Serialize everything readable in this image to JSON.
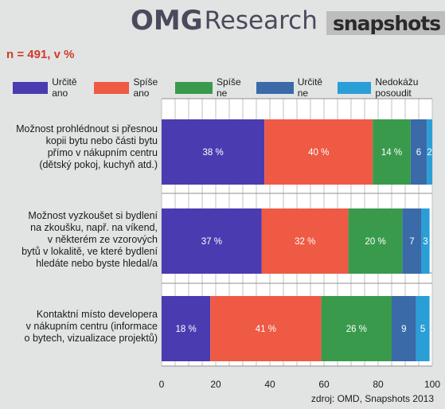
{
  "header": {
    "brand_omg": "OMG",
    "brand_research": "Research",
    "brand_snapshots": "snapshots"
  },
  "sample_note": "n = 491, v %",
  "source": "zdroj: OMD, Snapshots 2013",
  "colors": {
    "background": "#e2e4e4",
    "accent_red": "#d23a2a"
  },
  "chart_data": {
    "type": "bar",
    "orientation": "horizontal",
    "stacked": true,
    "xlim": [
      0,
      100
    ],
    "xticks": [
      0,
      20,
      40,
      60,
      80,
      100
    ],
    "legend_position": "top",
    "categories": [
      "Možnost prohlédnout si přesnou kopii bytu nebo části bytu přímo v nákupním centru (dětský pokoj, kuchyň atd.)",
      "Možnost vyzkoušet si bydlení na zkoušku, např. na víkend, v některém ze vzorových bytů v lokalitě, ve které bydlení hledáte nebo byste hledal/a",
      "Kontaktní místo developera v nákupním centru (informace o bytech, vizualizace projektů)"
    ],
    "category_lines": [
      [
        "Možnost prohlédnout si přesnou",
        "kopii bytu nebo části bytu",
        "přímo v nákupním centru",
        "(dětský pokoj, kuchyň atd.)"
      ],
      [
        "Možnost vyzkoušet si bydlení",
        "na zkoušku, např. na víkend,",
        "v některém ze vzorových",
        "bytů v lokalitě, ve které bydlení",
        "hledáte nebo byste hledal/a"
      ],
      [
        "Kontaktní místo developera",
        "v nákupním centru (informace",
        "o bytech, vizualizace projektů)"
      ]
    ],
    "series": [
      {
        "name": "Určitě ano",
        "color": "#4a3bb0",
        "values": [
          38,
          37,
          18
        ],
        "labels": [
          "38 %",
          "37 %",
          "18 %"
        ]
      },
      {
        "name": "Spíše ano",
        "color": "#ee5a44",
        "values": [
          40,
          32,
          41
        ],
        "labels": [
          "40 %",
          "32 %",
          "41 %"
        ]
      },
      {
        "name": "Spíše ne",
        "color": "#3a9a4c",
        "values": [
          14,
          20,
          26
        ],
        "labels": [
          "14 %",
          "20 %",
          "26 %"
        ]
      },
      {
        "name": "Určitě ne",
        "color": "#3a6aa8",
        "values": [
          6,
          7,
          9
        ],
        "labels": [
          "6",
          "7",
          "9"
        ]
      },
      {
        "name": "Nedokážu posoudit",
        "color": "#2a9ed6",
        "values": [
          2,
          3,
          5
        ],
        "labels": [
          "2",
          "3",
          "5"
        ]
      }
    ]
  }
}
